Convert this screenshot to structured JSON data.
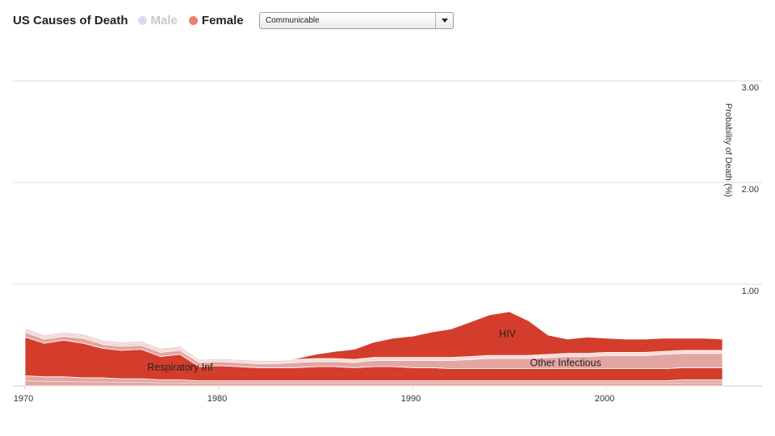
{
  "header": {
    "title": "US Causes of Death",
    "legend": [
      {
        "label": "Male",
        "color": "#d6dcf2",
        "active": false
      },
      {
        "label": "Female",
        "color": "#ea7d72",
        "active": true
      }
    ],
    "dropdown": {
      "selected": "Communicable"
    }
  },
  "chart_data": {
    "type": "area",
    "stacked": true,
    "ylabel": "Probability of Death (%)",
    "ylim": [
      0,
      3.0
    ],
    "yticks": [
      "3.00",
      "2.00",
      "1.00"
    ],
    "xlim": [
      1970,
      2006
    ],
    "xticks": [
      "1970",
      "1980",
      "1990",
      "2000"
    ],
    "grid": true,
    "axis_position": "right",
    "x": [
      1970,
      1971,
      1972,
      1973,
      1974,
      1975,
      1976,
      1977,
      1978,
      1979,
      1980,
      1981,
      1982,
      1983,
      1984,
      1985,
      1986,
      1987,
      1988,
      1989,
      1990,
      1991,
      1992,
      1993,
      1994,
      1995,
      1996,
      1997,
      1998,
      1999,
      2000,
      2001,
      2002,
      2003,
      2004,
      2005,
      2006
    ],
    "series": [
      {
        "name": "",
        "color": "#e2a6a2",
        "values": [
          0.1,
          0.09,
          0.09,
          0.08,
          0.08,
          0.07,
          0.07,
          0.06,
          0.06,
          0.05,
          0.05,
          0.05,
          0.05,
          0.05,
          0.05,
          0.05,
          0.05,
          0.05,
          0.05,
          0.05,
          0.05,
          0.05,
          0.05,
          0.05,
          0.05,
          0.05,
          0.05,
          0.05,
          0.05,
          0.05,
          0.05,
          0.05,
          0.05,
          0.05,
          0.06,
          0.06,
          0.06
        ]
      },
      {
        "name": "Respiratory Inf",
        "color": "#d43d2c",
        "values": [
          0.38,
          0.33,
          0.36,
          0.34,
          0.29,
          0.28,
          0.29,
          0.23,
          0.25,
          0.14,
          0.15,
          0.14,
          0.13,
          0.13,
          0.13,
          0.14,
          0.14,
          0.13,
          0.14,
          0.14,
          0.13,
          0.13,
          0.12,
          0.12,
          0.12,
          0.12,
          0.12,
          0.12,
          0.12,
          0.12,
          0.12,
          0.12,
          0.12,
          0.12,
          0.12,
          0.12,
          0.12
        ]
      },
      {
        "name": "Other Infectious",
        "color": "#e2a6a2",
        "values": [
          0.05,
          0.04,
          0.04,
          0.05,
          0.04,
          0.04,
          0.04,
          0.04,
          0.04,
          0.04,
          0.04,
          0.04,
          0.04,
          0.04,
          0.05,
          0.05,
          0.05,
          0.05,
          0.06,
          0.06,
          0.07,
          0.07,
          0.08,
          0.09,
          0.1,
          0.1,
          0.1,
          0.11,
          0.12,
          0.12,
          0.13,
          0.13,
          0.13,
          0.14,
          0.14,
          0.14,
          0.14
        ]
      },
      {
        "name": "",
        "color": "#f0cfcc",
        "values": [
          0.04,
          0.04,
          0.04,
          0.04,
          0.04,
          0.04,
          0.04,
          0.04,
          0.04,
          0.03,
          0.03,
          0.03,
          0.03,
          0.03,
          0.03,
          0.03,
          0.03,
          0.03,
          0.03,
          0.03,
          0.03,
          0.03,
          0.03,
          0.03,
          0.03,
          0.03,
          0.03,
          0.03,
          0.03,
          0.03,
          0.03,
          0.03,
          0.03,
          0.03,
          0.03,
          0.03,
          0.03
        ]
      },
      {
        "name": "HIV",
        "color": "#d43d2c",
        "values": [
          0,
          0,
          0,
          0,
          0,
          0,
          0,
          0,
          0,
          0,
          0,
          0,
          0,
          0,
          0.01,
          0.04,
          0.07,
          0.1,
          0.15,
          0.19,
          0.21,
          0.25,
          0.28,
          0.34,
          0.4,
          0.43,
          0.34,
          0.19,
          0.14,
          0.16,
          0.14,
          0.13,
          0.13,
          0.13,
          0.12,
          0.12,
          0.11
        ]
      }
    ]
  }
}
